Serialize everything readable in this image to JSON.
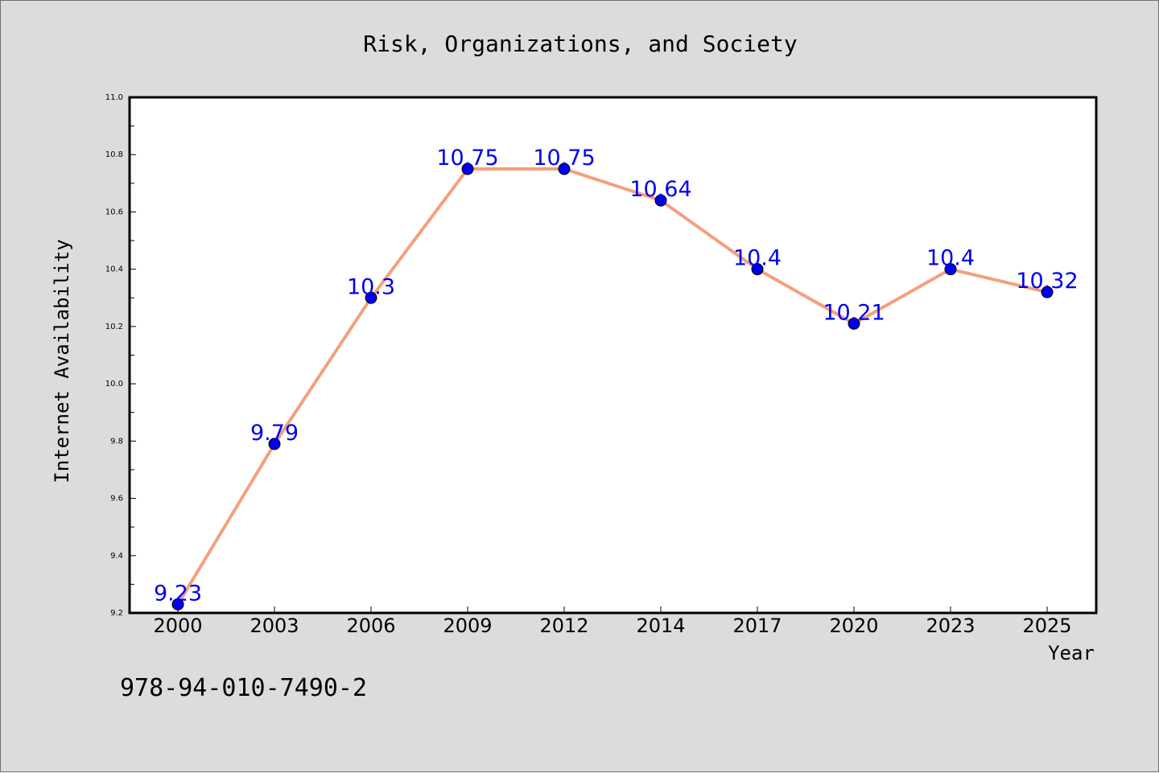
{
  "chart_data": {
    "type": "line",
    "title": "Risk, Organizations, and Society",
    "xlabel": "Year",
    "ylabel": "Internet Availability",
    "categories": [
      "2000",
      "2003",
      "2006",
      "2009",
      "2012",
      "2014",
      "2017",
      "2020",
      "2023",
      "2025"
    ],
    "series": [
      {
        "values": [
          9.23,
          9.79,
          10.3,
          10.75,
          10.75,
          10.64,
          10.4,
          10.21,
          10.4,
          10.32
        ],
        "data_labels": [
          "9.23",
          "9.79",
          "10.3",
          "10.75",
          "10.75",
          "10.64",
          "10.4",
          "10.21",
          "10.4",
          "10.32"
        ]
      }
    ],
    "ylim": [
      9.2,
      11.0
    ],
    "yticks": [
      "9.2",
      "9.4",
      "9.6",
      "9.8",
      "10.0",
      "10.2",
      "10.4",
      "10.6",
      "10.8",
      "11.0"
    ],
    "grid": false,
    "colors": {
      "line": "#f4a07c",
      "marker": "#0000ee",
      "label": "#0000ee",
      "figure_bg": "#dcdcdc",
      "plot_bg": "#ffffff"
    }
  },
  "footer_text": "978-94-010-7490-2"
}
